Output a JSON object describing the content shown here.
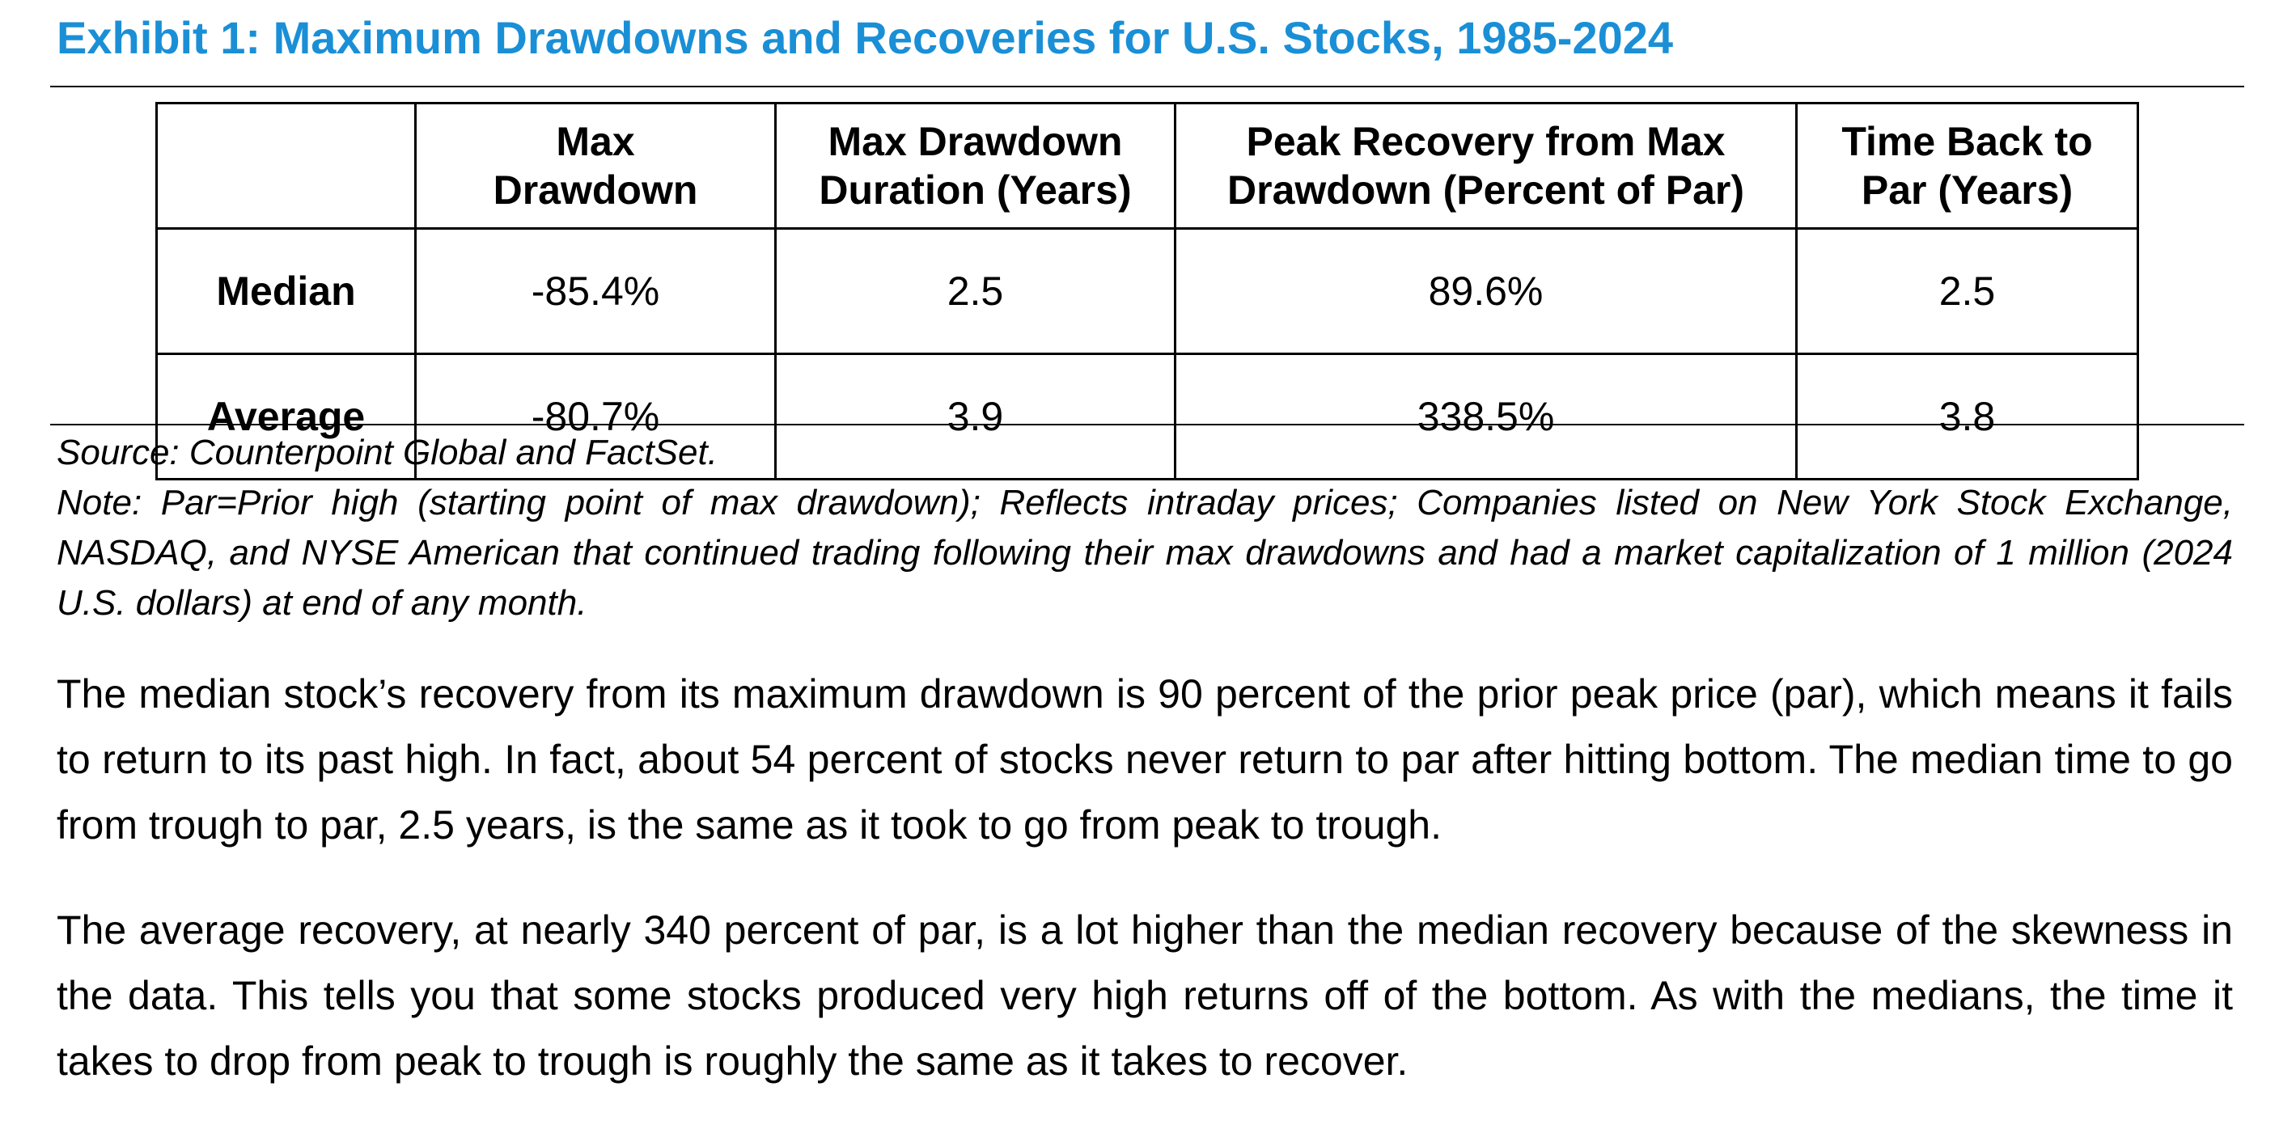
{
  "exhibit": {
    "title": "Exhibit 1: Maximum Drawdowns and Recoveries for U.S. Stocks, 1985-2024",
    "title_color": "#1a8fd6"
  },
  "table": {
    "corner": "",
    "headers": {
      "max_drawdown": {
        "line1": "Max",
        "line2": "Drawdown"
      },
      "duration": {
        "line1": "Max Drawdown",
        "line2": "Duration (Years)"
      },
      "peak_recovery": {
        "line1": "Peak Recovery from Max",
        "line2": "Drawdown (Percent of Par)"
      },
      "time_back": {
        "line1": "Time Back to",
        "line2": "Par (Years)"
      }
    },
    "rows": [
      {
        "label": "Median",
        "max_drawdown": "-85.4%",
        "duration": "2.5",
        "peak_recovery": "89.6%",
        "time_back": "2.5"
      },
      {
        "label": "Average",
        "max_drawdown": "-80.7%",
        "duration": "3.9",
        "peak_recovery": "338.5%",
        "time_back": "3.8"
      }
    ]
  },
  "source": "Source: Counterpoint Global and FactSet.",
  "note": "Note: Par=Prior high (starting point of max drawdown); Reflects intraday prices; Companies listed on New York Stock Exchange, NASDAQ, and NYSE American that continued trading following their max drawdowns and had a market capitalization of 1 million (2024 U.S. dollars) at end of any month.",
  "paragraphs": {
    "p1": "The median stock’s recovery from its maximum drawdown is 90 percent of the prior peak price (par), which means it fails to return to its past high. In fact, about 54 percent of stocks never return to par after hitting bottom. The median time to go from trough to par, 2.5 years, is the same as it took to go from peak to trough.",
    "p2": "The average recovery, at nearly 340 percent of par, is a lot higher than the median recovery because of the skewness in the data. This tells you that some stocks produced very high returns off of the bottom. As with the medians, the time it takes to drop from peak to trough is roughly the same as it takes to recover."
  }
}
